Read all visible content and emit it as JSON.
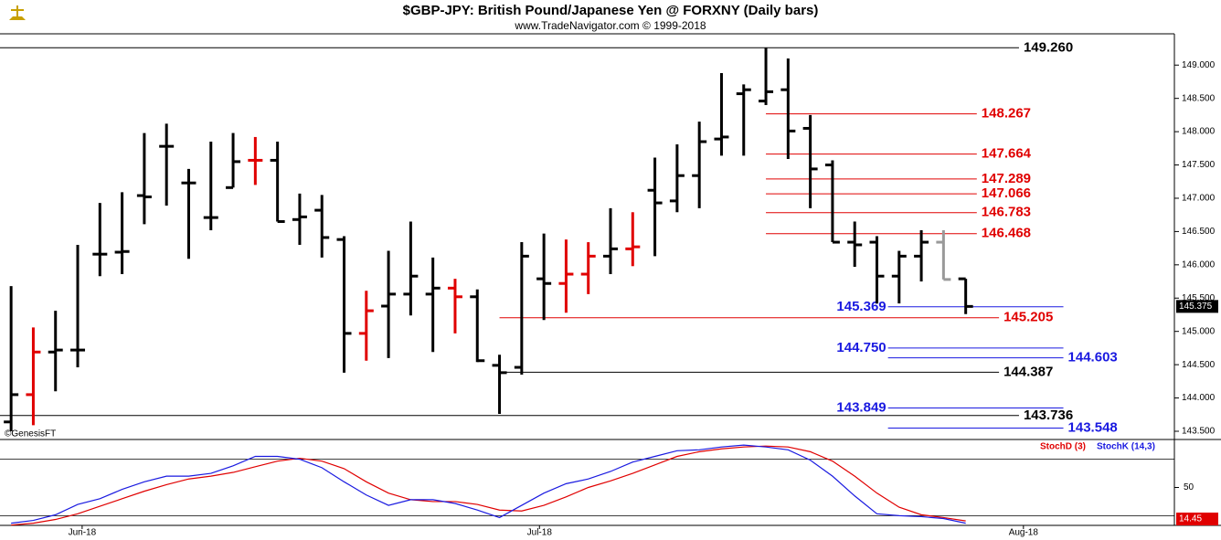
{
  "chart_data": {
    "type": "ohlc",
    "title": "$GBP-JPY:  British Pound/Japanese Yen @ FORXNY  (Daily bars)",
    "subtitle": "www.TradeNavigator.com © 1999-2018",
    "watermark": "©GenesisFT",
    "xlim": [
      -0.5,
      52.4
    ],
    "xticks": [
      {
        "value": 3.2,
        "label": "Jun-18"
      },
      {
        "value": 23.8,
        "label": "Jul-18"
      },
      {
        "value": 45.6,
        "label": "Aug-18"
      }
    ],
    "ylim": [
      143.39,
      149.47
    ],
    "yticks": [
      {
        "value": 143.5,
        "label": "143.500"
      },
      {
        "value": 144,
        "label": "144.000"
      },
      {
        "value": 144.5,
        "label": "144.500"
      },
      {
        "value": 145,
        "label": "145.000"
      },
      {
        "value": 145.5,
        "label": "145.500"
      },
      {
        "value": 146,
        "label": "146.000"
      },
      {
        "value": 146.5,
        "label": "146.500"
      },
      {
        "value": 147,
        "label": "147.000"
      },
      {
        "value": 147.5,
        "label": "147.500"
      },
      {
        "value": 148,
        "label": "148.000"
      },
      {
        "value": 148.5,
        "label": "148.500"
      },
      {
        "value": 149,
        "label": "149.000"
      }
    ],
    "bars": {
      "open": [
        143.64,
        144.05,
        144.69,
        144.72,
        146.16,
        146.19,
        147.04,
        147.78,
        147.23,
        146.71,
        147.16,
        147.57,
        147.57,
        146.68,
        146.82,
        146.38,
        144.97,
        145.38,
        145.56,
        145.56,
        145.65,
        145.52,
        144.49,
        144.46,
        145.79,
        145.72,
        145.86,
        146.13,
        146.24,
        147.12,
        146.96,
        147.34,
        147.89,
        148.57,
        148.46,
        148.63,
        148.05,
        147.5,
        146.34,
        146.34,
        145.83,
        146.13,
        146.34,
        145.79
      ],
      "high": [
        145.68,
        145.06,
        145.31,
        146.3,
        146.93,
        147.09,
        147.98,
        148.12,
        147.44,
        147.85,
        147.98,
        147.92,
        147.85,
        147.07,
        147.05,
        146.43,
        145.61,
        146.21,
        146.65,
        146.11,
        145.79,
        145.63,
        144.65,
        146.34,
        146.47,
        146.38,
        146.34,
        146.85,
        146.79,
        147.61,
        147.81,
        148.15,
        148.88,
        148.71,
        149.26,
        149.1,
        148.25,
        147.57,
        146.65,
        146.43,
        146.21,
        146.52,
        146.52,
        145.79
      ],
      "low": [
        143.5,
        143.59,
        144.1,
        144.46,
        145.83,
        145.86,
        146.61,
        146.89,
        146.09,
        146.52,
        147.16,
        147.2,
        146.65,
        146.3,
        146.11,
        144.38,
        144.56,
        144.6,
        145.24,
        144.69,
        144.97,
        144.54,
        143.76,
        144.35,
        145.17,
        145.28,
        145.56,
        145.86,
        145.98,
        146.13,
        146.79,
        146.85,
        147.64,
        147.64,
        148.4,
        147.59,
        146.85,
        146.34,
        145.97,
        145.42,
        145.42,
        145.75,
        145.78,
        145.26
      ],
      "close": [
        144.05,
        144.69,
        144.72,
        144.72,
        146.16,
        146.2,
        147.02,
        147.78,
        147.23,
        146.71,
        147.55,
        147.57,
        146.65,
        146.72,
        146.41,
        144.97,
        145.31,
        145.56,
        145.83,
        145.65,
        145.52,
        144.56,
        144.38,
        146.13,
        145.72,
        145.86,
        146.13,
        146.24,
        146.27,
        146.93,
        147.34,
        147.85,
        147.92,
        148.63,
        148.6,
        148.01,
        147.44,
        146.34,
        146.3,
        145.83,
        146.13,
        146.34,
        145.78,
        145.375
      ],
      "colors": [
        "#000",
        "#e00000",
        "#000",
        "#000",
        "#000",
        "#000",
        "#000",
        "#000",
        "#000",
        "#000",
        "#000",
        "#e00000",
        "#000",
        "#000",
        "#000",
        "#000",
        "#e00000",
        "#000",
        "#000",
        "#000",
        "#e00000",
        "#000",
        "#000",
        "#000",
        "#000",
        "#e00000",
        "#e00000",
        "#000",
        "#e00000",
        "#000",
        "#000",
        "#000",
        "#000",
        "#000",
        "#000",
        "#000",
        "#000",
        "#000",
        "#000",
        "#000",
        "#000",
        "#000",
        "#999",
        "#000"
      ]
    },
    "last_price": 145.375,
    "levels": [
      {
        "value": 149.26,
        "label": "149.260",
        "color": "#000",
        "from": -0.5,
        "to": 45.4,
        "side": "right"
      },
      {
        "value": 148.267,
        "label": "148.267",
        "color": "#e00000",
        "from": 34,
        "to": 43.5,
        "side": "right"
      },
      {
        "value": 147.664,
        "label": "147.664",
        "color": "#e00000",
        "from": 34,
        "to": 43.5,
        "side": "right"
      },
      {
        "value": 147.289,
        "label": "147.289",
        "color": "#e00000",
        "from": 34,
        "to": 43.5,
        "side": "right"
      },
      {
        "value": 147.066,
        "label": "147.066",
        "color": "#e00000",
        "from": 34,
        "to": 43.5,
        "side": "right"
      },
      {
        "value": 146.783,
        "label": "146.783",
        "color": "#e00000",
        "from": 34,
        "to": 43.5,
        "side": "right"
      },
      {
        "value": 146.468,
        "label": "146.468",
        "color": "#e00000",
        "from": 34,
        "to": 43.5,
        "side": "right"
      },
      {
        "value": 145.205,
        "label": "145.205",
        "color": "#e00000",
        "from": 22,
        "to": 44.5,
        "side": "right"
      },
      {
        "value": 144.387,
        "label": "144.387",
        "color": "#000",
        "from": 22,
        "to": 44.5,
        "side": "right"
      },
      {
        "value": 143.736,
        "label": "143.736",
        "color": "#000",
        "from": -0.5,
        "to": 45.4,
        "side": "right"
      },
      {
        "value": 145.369,
        "label": "145.369",
        "color": "#1a1ae0",
        "from": 39.5,
        "to": 47.4,
        "side": "left"
      },
      {
        "value": 144.75,
        "label": "144.750",
        "color": "#1a1ae0",
        "from": 39.5,
        "to": 47.4,
        "side": "left"
      },
      {
        "value": 144.603,
        "label": "144.603",
        "color": "#1a1ae0",
        "from": 39.5,
        "to": 47.4,
        "side": "right"
      },
      {
        "value": 143.849,
        "label": "143.849",
        "color": "#1a1ae0",
        "from": 39.5,
        "to": 47.4,
        "side": "left"
      },
      {
        "value": 143.548,
        "label": "143.548",
        "color": "#1a1ae0",
        "from": 39.5,
        "to": 47.4,
        "side": "right"
      }
    ],
    "stochastic": {
      "ylim": [
        0,
        100
      ],
      "yticks": [
        50
      ],
      "lines": [
        20,
        80
      ],
      "last_value": 14.45,
      "series": [
        {
          "name": "StochD (3)",
          "color": "#e00000",
          "values": [
            10,
            12,
            16,
            22,
            30,
            38,
            46,
            53,
            59,
            62,
            66,
            72,
            78,
            81,
            78,
            70,
            56,
            44,
            37,
            35,
            35,
            32,
            26,
            25,
            31,
            40,
            50,
            57,
            65,
            74,
            83,
            88,
            91,
            93,
            94,
            93,
            88,
            78,
            62,
            44,
            29,
            21,
            18,
            14.45
          ]
        },
        {
          "name": "StochK (14,3)",
          "color": "#1a1ae0",
          "values": [
            12,
            15,
            21,
            32,
            38,
            48,
            56,
            62,
            62,
            65,
            73,
            83,
            83,
            80,
            71,
            56,
            42,
            31,
            37,
            37,
            33,
            26,
            18,
            31,
            44,
            54,
            59,
            67,
            77,
            83,
            89,
            90,
            93,
            95,
            93,
            90,
            79,
            62,
            41,
            22,
            20,
            19,
            17,
            12
          ]
        }
      ]
    }
  }
}
